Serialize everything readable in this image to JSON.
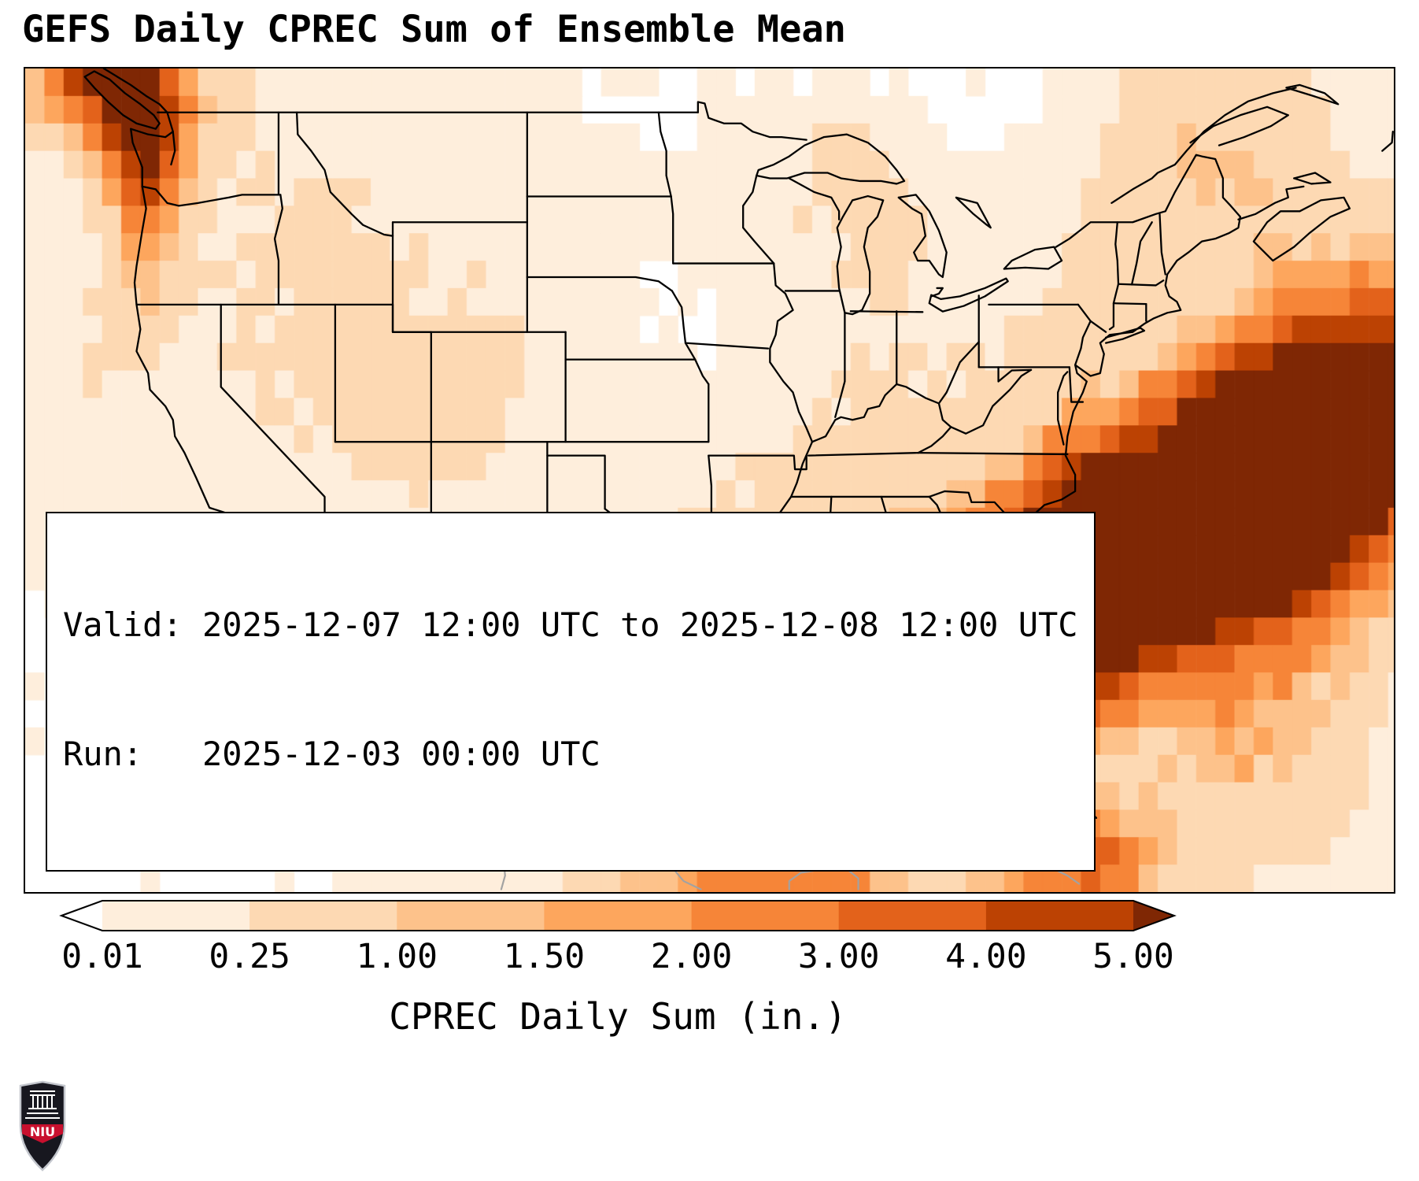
{
  "header": {
    "title": "GEFS Daily CPREC Sum of Ensemble Mean"
  },
  "info_box": {
    "valid_line": "Valid: 2025-12-07 12:00 UTC to 2025-12-08 12:00 UTC",
    "run_line": "Run:   2025-12-03 00:00 UTC"
  },
  "colorbar": {
    "label": "CPREC Daily Sum (in.)",
    "tick_labels": [
      "0.01",
      "0.25",
      "1.00",
      "1.50",
      "2.00",
      "3.00",
      "4.00",
      "5.00"
    ],
    "segment_colors": [
      "#feeedc",
      "#fdd9b3",
      "#fdc28b",
      "#fda65d",
      "#f68538",
      "#e3621b",
      "#bc4203"
    ],
    "under_color": "#ffffff",
    "over_color": "#7f2704"
  },
  "logo": {
    "text": "NIU",
    "shield_color": "#17171f",
    "band_color": "#c8102e"
  },
  "chart_data": {
    "type": "heatmap",
    "title": "GEFS Daily CPREC Sum of Ensemble Mean",
    "variable": "CPREC Daily Sum",
    "units": "in.",
    "valid_start": "2025-12-07 12:00 UTC",
    "valid_end": "2025-12-08 12:00 UTC",
    "run": "2025-12-03 00:00 UTC",
    "lon_range": [
      -130.2,
      -58.9
    ],
    "lat_range": [
      20.6,
      50.6
    ],
    "grid_deg": 1.0,
    "levels": [
      0.01,
      0.25,
      1.0,
      1.5,
      2.0,
      3.0,
      4.0,
      5.0
    ],
    "features": [
      {
        "name": "bc-coast-corner",
        "center": [
          -127.5,
          50.8
        ],
        "sigma": [
          1.8,
          1.5
        ],
        "rotate_deg": 0,
        "peak": 4.0
      },
      {
        "name": "pacific-nw-coast",
        "center": [
          -124.8,
          49.6
        ],
        "sigma": [
          2.8,
          1.3
        ],
        "rotate_deg": 105,
        "peak": 5.5
      },
      {
        "name": "olympics-cascades",
        "center": [
          -123.3,
          47.6
        ],
        "sigma": [
          1.1,
          1.6
        ],
        "rotate_deg": 0,
        "peak": 2.2
      },
      {
        "name": "oregon-coast",
        "center": [
          -124.2,
          44.3
        ],
        "sigma": [
          2.4,
          0.9
        ],
        "rotate_deg": 95,
        "peak": 1.0
      },
      {
        "name": "bc-interior",
        "center": [
          -121.8,
          50.2
        ],
        "sigma": [
          2.2,
          1.6
        ],
        "rotate_deg": 0,
        "peak": 1.1
      },
      {
        "name": "interior-west",
        "center": [
          -113.5,
          43.5
        ],
        "sigma": [
          6.5,
          4.0
        ],
        "rotate_deg": 0,
        "peak": 0.26
      },
      {
        "name": "great-basin",
        "center": [
          -116.5,
          39.5
        ],
        "sigma": [
          3.5,
          3.5
        ],
        "rotate_deg": 0,
        "peak": 0.18
      },
      {
        "name": "offshore-california",
        "center": [
          -127.0,
          41.0
        ],
        "sigma": [
          2.5,
          4.0
        ],
        "rotate_deg": 0,
        "peak": 0.2
      },
      {
        "name": "colorado-rockies",
        "center": [
          -106.8,
          39.2
        ],
        "sigma": [
          1.6,
          1.7
        ],
        "rotate_deg": 0,
        "peak": 0.55
      },
      {
        "name": "utah-highlands",
        "center": [
          -111.6,
          38.3
        ],
        "sigma": [
          1.4,
          1.8
        ],
        "rotate_deg": 0,
        "peak": 0.5
      },
      {
        "name": "four-corners",
        "center": [
          -108.5,
          36.0
        ],
        "sigma": [
          2.5,
          2.0
        ],
        "rotate_deg": 0,
        "peak": 0.25
      },
      {
        "name": "sierra-madre-mx",
        "center": [
          -108.3,
          27.5
        ],
        "sigma": [
          1.7,
          3.0
        ],
        "rotate_deg": 0,
        "peak": 0.35
      },
      {
        "name": "baja-sur",
        "center": [
          -112.5,
          25.5
        ],
        "sigma": [
          1.5,
          2.0
        ],
        "rotate_deg": 0,
        "peak": 0.3
      },
      {
        "name": "lake-superior",
        "center": [
          -87.6,
          46.9
        ],
        "sigma": [
          1.1,
          0.9
        ],
        "rotate_deg": 0,
        "peak": 0.9
      },
      {
        "name": "lower-michigan",
        "center": [
          -85.3,
          44.0
        ],
        "sigma": [
          1.8,
          1.6
        ],
        "rotate_deg": 0,
        "peak": 0.4
      },
      {
        "name": "upper-midwest",
        "center": [
          -89.0,
          45.5
        ],
        "sigma": [
          3.0,
          2.0
        ],
        "rotate_deg": 0,
        "peak": 0.18
      },
      {
        "name": "northeast",
        "center": [
          -73.5,
          43.8
        ],
        "sigma": [
          3.0,
          2.2
        ],
        "rotate_deg": 0,
        "peak": 0.4
      },
      {
        "name": "maine",
        "center": [
          -68.5,
          46.5
        ],
        "sigma": [
          2.5,
          2.0
        ],
        "rotate_deg": 0,
        "peak": 0.55
      },
      {
        "name": "maritimes",
        "center": [
          -65.0,
          47.0
        ],
        "sigma": [
          2.5,
          2.5
        ],
        "rotate_deg": 0,
        "peak": 0.5
      },
      {
        "name": "st-lawrence",
        "center": [
          -70.0,
          48.8
        ],
        "sigma": [
          2.5,
          1.8
        ],
        "rotate_deg": 0,
        "peak": 0.45
      },
      {
        "name": "appalachia",
        "center": [
          -81.0,
          37.8
        ],
        "sigma": [
          3.0,
          2.5
        ],
        "rotate_deg": 0,
        "peak": 0.25
      },
      {
        "name": "ohio-valley",
        "center": [
          -85.5,
          39.5
        ],
        "sigma": [
          3.5,
          2.5
        ],
        "rotate_deg": 0,
        "peak": 0.15
      },
      {
        "name": "southeast",
        "center": [
          -86.5,
          33.8
        ],
        "sigma": [
          4.0,
          2.6
        ],
        "rotate_deg": 0,
        "peak": 0.55
      },
      {
        "name": "east-texas-louisiana",
        "center": [
          -93.8,
          31.5
        ],
        "sigma": [
          2.6,
          2.6
        ],
        "rotate_deg": 0,
        "peak": 0.6
      },
      {
        "name": "texas",
        "center": [
          -98.5,
          29.8
        ],
        "sigma": [
          3.0,
          2.5
        ],
        "rotate_deg": 0,
        "peak": 0.2
      },
      {
        "name": "mid-atlantic-coast",
        "center": [
          -76.0,
          38.5
        ],
        "sigma": [
          2.2,
          2.0
        ],
        "rotate_deg": 0,
        "peak": 0.35
      },
      {
        "name": "gulf-of-mexico-max",
        "center": [
          -88.8,
          27.3
        ],
        "sigma": [
          3.8,
          2.1
        ],
        "rotate_deg": 5,
        "peak": 9.0
      },
      {
        "name": "florida-peninsula",
        "center": [
          -82.0,
          28.8
        ],
        "sigma": [
          2.6,
          2.2
        ],
        "rotate_deg": 25,
        "peak": 6.5
      },
      {
        "name": "atlantic-band",
        "center": [
          -73.0,
          32.5
        ],
        "sigma": [
          9.0,
          2.7
        ],
        "rotate_deg": 27,
        "peak": 9.0
      },
      {
        "name": "atlantic-band-ne",
        "center": [
          -63.5,
          35.8
        ],
        "sigma": [
          5.0,
          3.2
        ],
        "rotate_deg": 30,
        "peak": 8.5
      },
      {
        "name": "outer-banks",
        "center": [
          -75.5,
          34.8
        ],
        "sigma": [
          2.2,
          1.6
        ],
        "rotate_deg": 25,
        "peak": 2.2
      },
      {
        "name": "atlantic-south-fringe",
        "center": [
          -66.0,
          26.0
        ],
        "sigma": [
          3.5,
          2.5
        ],
        "rotate_deg": 0,
        "peak": 1.2
      },
      {
        "name": "caribbean-south-edge",
        "center": [
          -92.0,
          21.5
        ],
        "sigma": [
          5.0,
          1.3
        ],
        "rotate_deg": 0,
        "peak": 2.2
      },
      {
        "name": "cuba-bahamas",
        "center": [
          -75.5,
          21.8
        ],
        "sigma": [
          3.0,
          1.4
        ],
        "rotate_deg": 0,
        "peak": 3.5
      }
    ]
  }
}
